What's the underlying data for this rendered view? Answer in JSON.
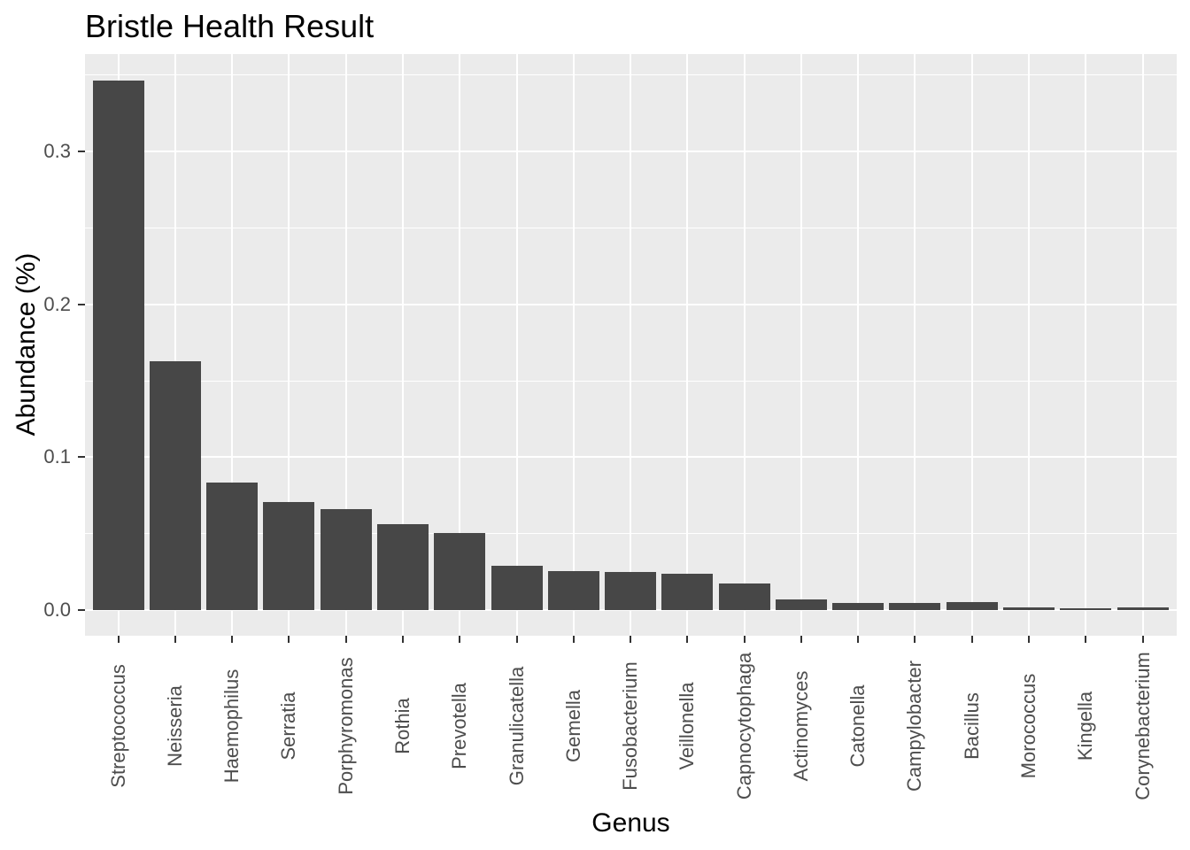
{
  "chart_data": {
    "type": "bar",
    "title": "Bristle Health Result",
    "xlabel": "Genus",
    "ylabel": "Abundance (%)",
    "categories": [
      "Streptococcus",
      "Neisseria",
      "Haemophilus",
      "Serratia",
      "Porphyromonas",
      "Rothia",
      "Prevotella",
      "Granulicatella",
      "Gemella",
      "Fusobacterium",
      "Veillonella",
      "Capnocytophaga",
      "Actinomyces",
      "Catonella",
      "Campylobacter",
      "Bacillus",
      "Morococcus",
      "Kingella",
      "Corynebacterium"
    ],
    "values": [
      0.3465,
      0.1627,
      0.0836,
      0.0705,
      0.066,
      0.056,
      0.0505,
      0.029,
      0.0255,
      0.025,
      0.0239,
      0.0172,
      0.0068,
      0.0045,
      0.0046,
      0.0052,
      0.0017,
      0.0012,
      0.0016
    ],
    "y_ticks": [
      0.0,
      0.1,
      0.2,
      0.3
    ],
    "y_tick_labels": [
      "0.0",
      "0.1",
      "0.2",
      "0.3"
    ],
    "y_minor_ticks": [
      0.05,
      0.15,
      0.25,
      0.35
    ],
    "ylim": [
      0,
      0.364
    ],
    "grid": "white major+minor horizontal lines, white major vertical line at each category; no legend",
    "legend_position": "none",
    "colors": {
      "bar": "#474747",
      "panel_background": "#EBEBEB",
      "gridline": "#FFFFFF",
      "tick_mark": "#333333",
      "tick_label": "#4D4D4D",
      "title_text": "#000000"
    }
  }
}
